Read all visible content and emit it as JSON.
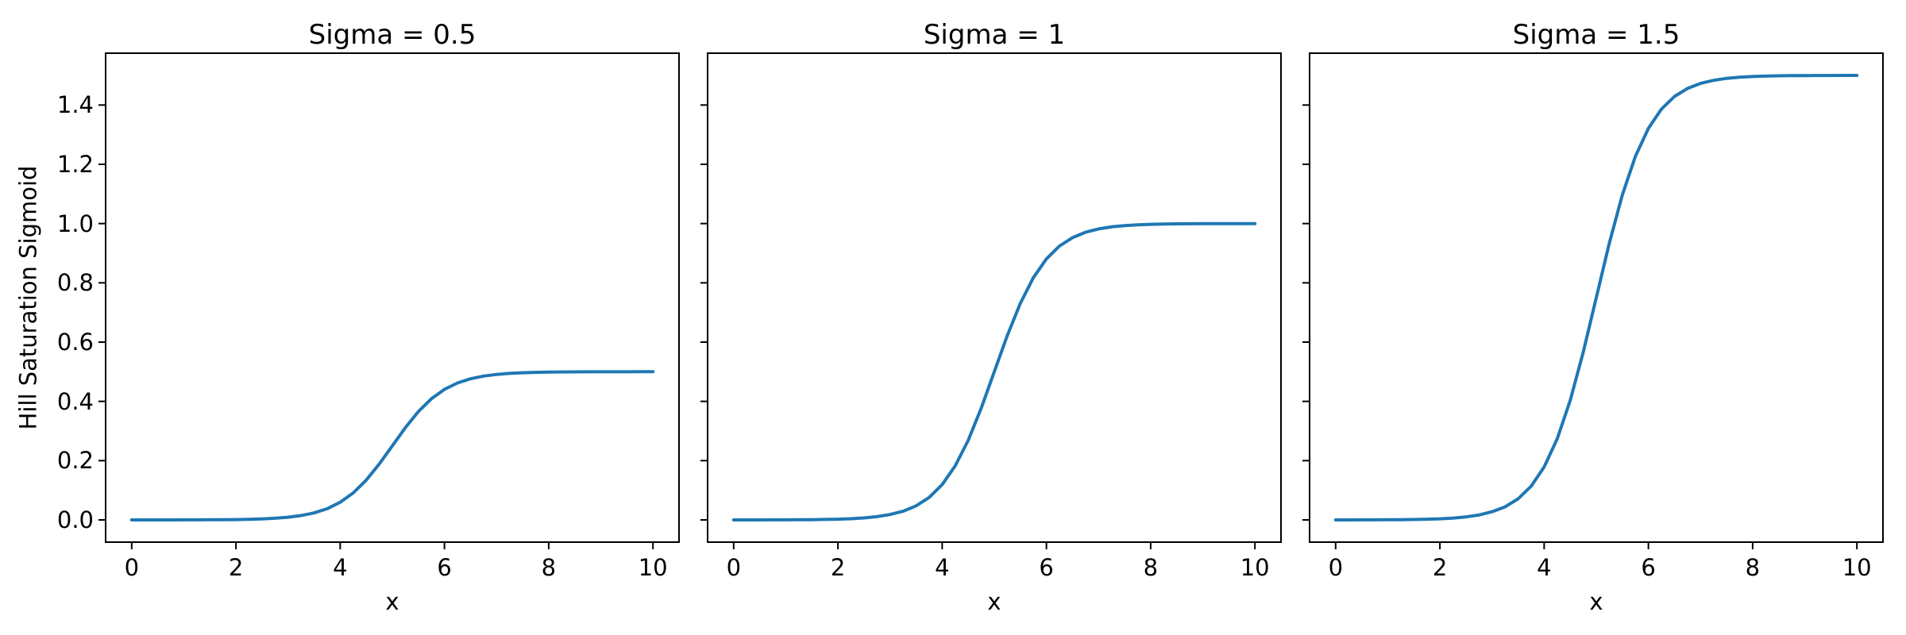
{
  "chart_data": {
    "type": "line",
    "xlabel": "x",
    "ylabel": "Hill Saturation Sigmoid",
    "grid": false,
    "legend": null,
    "line_color": "#1f77b4",
    "background_color": "#ffffff",
    "text_color": "#000000",
    "xlim": [
      -0.5,
      10.5
    ],
    "ylim": [
      -0.075,
      1.575
    ],
    "xticks": {
      "values": [
        0,
        2,
        4,
        6,
        8,
        10
      ],
      "labels": [
        "0",
        "2",
        "4",
        "6",
        "8",
        "10"
      ]
    },
    "yticks": {
      "values": [
        0.0,
        0.2,
        0.4,
        0.6,
        0.8,
        1.0,
        1.2,
        1.4
      ],
      "labels": [
        "0.0",
        "0.2",
        "0.4",
        "0.6",
        "0.8",
        "1.0",
        "1.2",
        "1.4"
      ]
    },
    "x": [
      0,
      0.25,
      0.5,
      0.75,
      1,
      1.25,
      1.5,
      1.75,
      2,
      2.25,
      2.5,
      2.75,
      3,
      3.25,
      3.5,
      3.75,
      4,
      4.25,
      4.5,
      4.75,
      5,
      5.25,
      5.5,
      5.75,
      6,
      6.25,
      6.5,
      6.75,
      7,
      7.25,
      7.5,
      7.75,
      8,
      8.25,
      8.5,
      8.75,
      9,
      9.25,
      9.5,
      9.75,
      10
    ],
    "panels": [
      {
        "title": "Sigma = 0.5",
        "sigma": 0.5,
        "xlabel": "x",
        "has_ytick_labels": true,
        "values": [
          0.0,
          0.0,
          0.0001,
          0.0001,
          0.0002,
          0.0003,
          0.0005,
          0.0008,
          0.0012,
          0.002,
          0.0034,
          0.0056,
          0.0092,
          0.0147,
          0.0237,
          0.0379,
          0.0596,
          0.0912,
          0.1345,
          0.1888,
          0.25,
          0.3112,
          0.3655,
          0.4088,
          0.4404,
          0.462,
          0.4763,
          0.4853,
          0.491,
          0.4945,
          0.4966,
          0.498,
          0.4988,
          0.4992,
          0.4995,
          0.4997,
          0.4998,
          0.4999,
          0.4999,
          0.5,
          0.5
        ]
      },
      {
        "title": "Sigma = 1",
        "sigma": 1,
        "xlabel": "x",
        "has_ytick_labels": false,
        "values": [
          0.0,
          0.0001,
          0.0001,
          0.0002,
          0.0003,
          0.0006,
          0.0009,
          0.0015,
          0.0025,
          0.0041,
          0.0067,
          0.0111,
          0.0183,
          0.0293,
          0.0474,
          0.0759,
          0.1192,
          0.1824,
          0.2689,
          0.3775,
          0.5,
          0.6225,
          0.7311,
          0.8176,
          0.8808,
          0.9241,
          0.9526,
          0.9707,
          0.982,
          0.989,
          0.9933,
          0.9959,
          0.9975,
          0.9985,
          0.9991,
          0.9994,
          0.9997,
          0.9998,
          0.9999,
          0.9999,
          1.0
        ]
      },
      {
        "title": "Sigma = 1.5",
        "sigma": 1.5,
        "xlabel": "x",
        "has_ytick_labels": false,
        "values": [
          0.0001,
          0.0001,
          0.0002,
          0.0003,
          0.0005,
          0.0008,
          0.0014,
          0.0023,
          0.0037,
          0.0061,
          0.0101,
          0.0167,
          0.0275,
          0.044,
          0.0711,
          0.1138,
          0.1788,
          0.2736,
          0.4034,
          0.5663,
          0.75,
          0.9337,
          1.0966,
          1.2264,
          1.3212,
          1.3862,
          1.4289,
          1.4561,
          1.473,
          1.4835,
          1.49,
          1.4938,
          1.4963,
          1.4977,
          1.4986,
          1.4992,
          1.4995,
          1.4997,
          1.4998,
          1.4999,
          1.4999
        ]
      }
    ]
  }
}
